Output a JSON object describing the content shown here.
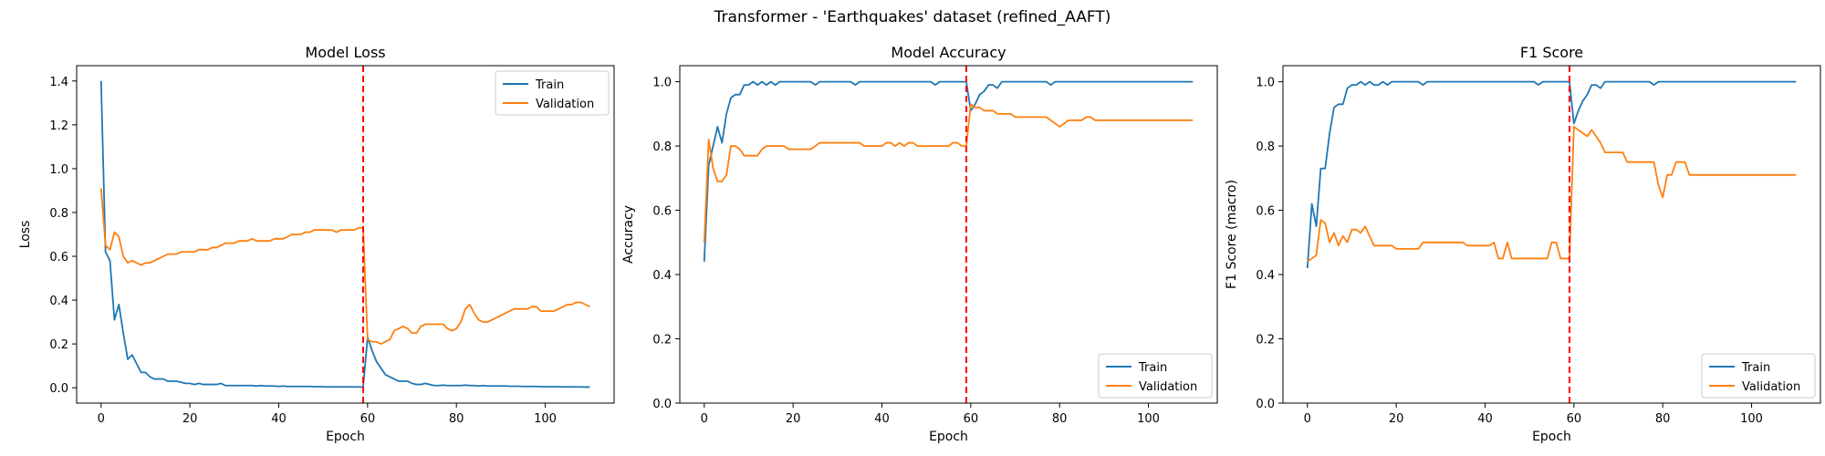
{
  "suptitle": "Transformer - 'Earthquakes' dataset (refined_AAFT)",
  "colors": {
    "train": "#1f77b4",
    "validation": "#ff7f0e",
    "marker": "#ff0000"
  },
  "chart_data": [
    {
      "type": "line",
      "title": "Model Loss",
      "xlabel": "Epoch",
      "ylabel": "Loss",
      "xlim": [
        -5.5,
        115.5
      ],
      "ylim": [
        -0.07,
        1.47
      ],
      "xticks": [
        0,
        20,
        40,
        60,
        80,
        100
      ],
      "yticks": [
        0.0,
        0.2,
        0.4,
        0.6,
        0.8,
        1.0,
        1.2,
        1.4
      ],
      "ytick_labels": [
        "0.0",
        "0.2",
        "0.4",
        "0.6",
        "0.8",
        "1.0",
        "1.2",
        "1.4"
      ],
      "vline_x": 59,
      "legend_loc": "upper right",
      "series": [
        {
          "name": "Train",
          "color": "#1f77b4",
          "values": [
            1.4,
            0.62,
            0.58,
            0.31,
            0.38,
            0.25,
            0.13,
            0.15,
            0.11,
            0.07,
            0.07,
            0.05,
            0.04,
            0.04,
            0.04,
            0.03,
            0.03,
            0.03,
            0.025,
            0.02,
            0.02,
            0.015,
            0.02,
            0.015,
            0.015,
            0.015,
            0.015,
            0.02,
            0.01,
            0.01,
            0.01,
            0.01,
            0.01,
            0.01,
            0.01,
            0.008,
            0.01,
            0.008,
            0.008,
            0.008,
            0.006,
            0.008,
            0.006,
            0.006,
            0.006,
            0.006,
            0.006,
            0.006,
            0.005,
            0.005,
            0.005,
            0.004,
            0.004,
            0.004,
            0.004,
            0.004,
            0.004,
            0.004,
            0.004,
            0.003,
            0.23,
            0.17,
            0.12,
            0.09,
            0.06,
            0.05,
            0.04,
            0.03,
            0.03,
            0.03,
            0.02,
            0.015,
            0.015,
            0.02,
            0.015,
            0.01,
            0.01,
            0.012,
            0.01,
            0.01,
            0.01,
            0.01,
            0.012,
            0.01,
            0.01,
            0.008,
            0.01,
            0.008,
            0.008,
            0.008,
            0.008,
            0.008,
            0.007,
            0.007,
            0.007,
            0.006,
            0.006,
            0.006,
            0.006,
            0.005,
            0.005,
            0.005,
            0.005,
            0.005,
            0.004,
            0.004,
            0.004,
            0.004,
            0.004,
            0.003,
            0.003
          ]
        },
        {
          "name": "Validation",
          "color": "#ff7f0e",
          "values": [
            0.91,
            0.65,
            0.63,
            0.71,
            0.69,
            0.6,
            0.57,
            0.58,
            0.57,
            0.56,
            0.57,
            0.57,
            0.58,
            0.59,
            0.6,
            0.61,
            0.61,
            0.61,
            0.62,
            0.62,
            0.62,
            0.62,
            0.63,
            0.63,
            0.63,
            0.64,
            0.64,
            0.65,
            0.66,
            0.66,
            0.66,
            0.67,
            0.67,
            0.67,
            0.68,
            0.67,
            0.67,
            0.67,
            0.67,
            0.68,
            0.68,
            0.68,
            0.69,
            0.7,
            0.7,
            0.7,
            0.71,
            0.71,
            0.72,
            0.72,
            0.72,
            0.72,
            0.72,
            0.71,
            0.72,
            0.72,
            0.72,
            0.72,
            0.73,
            0.73,
            0.22,
            0.21,
            0.21,
            0.2,
            0.21,
            0.22,
            0.26,
            0.27,
            0.28,
            0.27,
            0.25,
            0.25,
            0.28,
            0.29,
            0.29,
            0.29,
            0.29,
            0.29,
            0.27,
            0.26,
            0.27,
            0.3,
            0.36,
            0.38,
            0.34,
            0.31,
            0.3,
            0.3,
            0.31,
            0.32,
            0.33,
            0.34,
            0.35,
            0.36,
            0.36,
            0.36,
            0.36,
            0.37,
            0.37,
            0.35,
            0.35,
            0.35,
            0.35,
            0.36,
            0.37,
            0.38,
            0.38,
            0.39,
            0.39,
            0.38,
            0.37
          ]
        }
      ]
    },
    {
      "type": "line",
      "title": "Model Accuracy",
      "xlabel": "Epoch",
      "ylabel": "Accuracy",
      "xlim": [
        -5.5,
        115.5
      ],
      "ylim": [
        0.0,
        1.05
      ],
      "xticks": [
        0,
        20,
        40,
        60,
        80,
        100
      ],
      "yticks": [
        0.0,
        0.2,
        0.4,
        0.6,
        0.8,
        1.0
      ],
      "ytick_labels": [
        "0.0",
        "0.2",
        "0.4",
        "0.6",
        "0.8",
        "1.0"
      ],
      "vline_x": 59,
      "legend_loc": "lower right",
      "series": [
        {
          "name": "Train",
          "color": "#1f77b4",
          "values": [
            0.44,
            0.74,
            0.8,
            0.86,
            0.81,
            0.9,
            0.95,
            0.96,
            0.96,
            0.99,
            0.99,
            1.0,
            0.99,
            1.0,
            0.99,
            1.0,
            0.99,
            1.0,
            1.0,
            1.0,
            1.0,
            1.0,
            1.0,
            1.0,
            1.0,
            0.99,
            1.0,
            1.0,
            1.0,
            1.0,
            1.0,
            1.0,
            1.0,
            1.0,
            0.99,
            1.0,
            1.0,
            1.0,
            1.0,
            1.0,
            1.0,
            1.0,
            1.0,
            1.0,
            1.0,
            1.0,
            1.0,
            1.0,
            1.0,
            1.0,
            1.0,
            1.0,
            0.99,
            1.0,
            1.0,
            1.0,
            1.0,
            1.0,
            1.0,
            1.0,
            0.91,
            0.93,
            0.96,
            0.97,
            0.99,
            0.99,
            0.98,
            1.0,
            1.0,
            1.0,
            1.0,
            1.0,
            1.0,
            1.0,
            1.0,
            1.0,
            1.0,
            1.0,
            0.99,
            1.0,
            1.0,
            1.0,
            1.0,
            1.0,
            1.0,
            1.0,
            1.0,
            1.0,
            1.0,
            1.0,
            1.0,
            1.0,
            1.0,
            1.0,
            1.0,
            1.0,
            1.0,
            1.0,
            1.0,
            1.0,
            1.0,
            1.0,
            1.0,
            1.0,
            1.0,
            1.0,
            1.0,
            1.0,
            1.0,
            1.0,
            1.0
          ]
        },
        {
          "name": "Validation",
          "color": "#ff7f0e",
          "values": [
            0.5,
            0.82,
            0.73,
            0.69,
            0.69,
            0.71,
            0.8,
            0.8,
            0.79,
            0.77,
            0.77,
            0.77,
            0.77,
            0.79,
            0.8,
            0.8,
            0.8,
            0.8,
            0.8,
            0.79,
            0.79,
            0.79,
            0.79,
            0.79,
            0.79,
            0.8,
            0.81,
            0.81,
            0.81,
            0.81,
            0.81,
            0.81,
            0.81,
            0.81,
            0.81,
            0.81,
            0.8,
            0.8,
            0.8,
            0.8,
            0.8,
            0.81,
            0.81,
            0.8,
            0.81,
            0.8,
            0.81,
            0.81,
            0.8,
            0.8,
            0.8,
            0.8,
            0.8,
            0.8,
            0.8,
            0.8,
            0.81,
            0.81,
            0.8,
            0.8,
            0.93,
            0.92,
            0.92,
            0.91,
            0.91,
            0.91,
            0.9,
            0.9,
            0.9,
            0.9,
            0.89,
            0.89,
            0.89,
            0.89,
            0.89,
            0.89,
            0.89,
            0.89,
            0.88,
            0.87,
            0.86,
            0.87,
            0.88,
            0.88,
            0.88,
            0.88,
            0.89,
            0.89,
            0.88,
            0.88,
            0.88,
            0.88,
            0.88,
            0.88,
            0.88,
            0.88,
            0.88,
            0.88,
            0.88,
            0.88,
            0.88,
            0.88,
            0.88,
            0.88,
            0.88,
            0.88,
            0.88,
            0.88,
            0.88,
            0.88,
            0.88
          ]
        }
      ]
    },
    {
      "type": "line",
      "title": "F1 Score",
      "xlabel": "Epoch",
      "ylabel": "F1 Score (macro)",
      "xlim": [
        -5.5,
        115.5
      ],
      "ylim": [
        0.0,
        1.05
      ],
      "xticks": [
        0,
        20,
        40,
        60,
        80,
        100
      ],
      "yticks": [
        0.0,
        0.2,
        0.4,
        0.6,
        0.8,
        1.0
      ],
      "ytick_labels": [
        "0.0",
        "0.2",
        "0.4",
        "0.6",
        "0.8",
        "1.0"
      ],
      "vline_x": 59,
      "legend_loc": "lower right",
      "series": [
        {
          "name": "Train",
          "color": "#1f77b4",
          "values": [
            0.42,
            0.62,
            0.55,
            0.73,
            0.73,
            0.84,
            0.92,
            0.93,
            0.93,
            0.98,
            0.99,
            0.99,
            1.0,
            0.99,
            1.0,
            0.99,
            0.99,
            1.0,
            0.99,
            1.0,
            1.0,
            1.0,
            1.0,
            1.0,
            1.0,
            1.0,
            0.99,
            1.0,
            1.0,
            1.0,
            1.0,
            1.0,
            1.0,
            1.0,
            1.0,
            1.0,
            1.0,
            1.0,
            1.0,
            1.0,
            1.0,
            1.0,
            1.0,
            1.0,
            1.0,
            1.0,
            1.0,
            1.0,
            1.0,
            1.0,
            1.0,
            1.0,
            0.99,
            1.0,
            1.0,
            1.0,
            1.0,
            1.0,
            1.0,
            1.0,
            0.87,
            0.91,
            0.94,
            0.96,
            0.99,
            0.99,
            0.98,
            1.0,
            1.0,
            1.0,
            1.0,
            1.0,
            1.0,
            1.0,
            1.0,
            1.0,
            1.0,
            1.0,
            0.99,
            1.0,
            1.0,
            1.0,
            1.0,
            1.0,
            1.0,
            1.0,
            1.0,
            1.0,
            1.0,
            1.0,
            1.0,
            1.0,
            1.0,
            1.0,
            1.0,
            1.0,
            1.0,
            1.0,
            1.0,
            1.0,
            1.0,
            1.0,
            1.0,
            1.0,
            1.0,
            1.0,
            1.0,
            1.0,
            1.0,
            1.0,
            1.0
          ]
        },
        {
          "name": "Validation",
          "color": "#ff7f0e",
          "values": [
            0.44,
            0.45,
            0.46,
            0.57,
            0.56,
            0.5,
            0.53,
            0.49,
            0.52,
            0.5,
            0.54,
            0.54,
            0.53,
            0.55,
            0.52,
            0.49,
            0.49,
            0.49,
            0.49,
            0.49,
            0.48,
            0.48,
            0.48,
            0.48,
            0.48,
            0.48,
            0.5,
            0.5,
            0.5,
            0.5,
            0.5,
            0.5,
            0.5,
            0.5,
            0.5,
            0.5,
            0.49,
            0.49,
            0.49,
            0.49,
            0.49,
            0.49,
            0.5,
            0.45,
            0.45,
            0.5,
            0.45,
            0.45,
            0.45,
            0.45,
            0.45,
            0.45,
            0.45,
            0.45,
            0.45,
            0.5,
            0.5,
            0.45,
            0.45,
            0.45,
            0.86,
            0.85,
            0.84,
            0.83,
            0.85,
            0.83,
            0.81,
            0.78,
            0.78,
            0.78,
            0.78,
            0.78,
            0.75,
            0.75,
            0.75,
            0.75,
            0.75,
            0.75,
            0.75,
            0.68,
            0.64,
            0.71,
            0.71,
            0.75,
            0.75,
            0.75,
            0.71,
            0.71,
            0.71,
            0.71,
            0.71,
            0.71,
            0.71,
            0.71,
            0.71,
            0.71,
            0.71,
            0.71,
            0.71,
            0.71,
            0.71,
            0.71,
            0.71,
            0.71,
            0.71,
            0.71,
            0.71,
            0.71,
            0.71,
            0.71,
            0.71
          ]
        }
      ]
    }
  ]
}
